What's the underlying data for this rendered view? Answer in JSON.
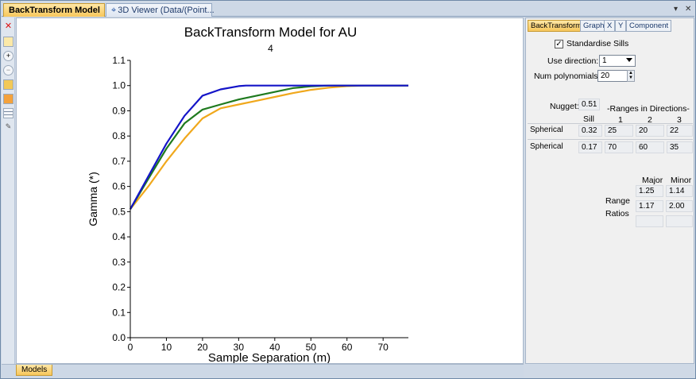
{
  "tabs": {
    "active_label": "BackTransform Model",
    "inactive_label": "3D Viewer (Data/(Point..."
  },
  "tab_controls": {
    "pin": "▾",
    "close": "✕"
  },
  "toolbar_icons": [
    "close-icon",
    "open-icon",
    "zoom-in-icon",
    "zoom-out-icon",
    "folder-icon",
    "chart-icon",
    "grid-icon",
    "wand-icon"
  ],
  "chart": {
    "title": "BackTransform Model for AU",
    "subtitle": "4",
    "xlabel": "Sample Separation (m)",
    "ylabel": "Gamma (*)"
  },
  "chart_data": {
    "type": "line",
    "title": "BackTransform Model for AU",
    "subtitle": "4",
    "xlabel": "Sample Separation (m)",
    "ylabel": "Gamma (*)",
    "xlim": [
      0,
      77
    ],
    "ylim": [
      0.0,
      1.1
    ],
    "xticks": [
      0,
      10,
      20,
      30,
      40,
      50,
      60,
      70
    ],
    "yticks": [
      0.0,
      0.1,
      0.2,
      0.3,
      0.4,
      0.5,
      0.6,
      0.7,
      0.8,
      0.9,
      1.0,
      1.1
    ],
    "grid": false,
    "series": [
      {
        "color": "#1414c8",
        "x": [
          0,
          5,
          10,
          15,
          20,
          25,
          30,
          32,
          77
        ],
        "y": [
          0.51,
          0.64,
          0.77,
          0.88,
          0.96,
          0.985,
          0.998,
          1.0,
          1.0
        ]
      },
      {
        "color": "#1f7a1f",
        "x": [
          0,
          5,
          10,
          15,
          20,
          25,
          30,
          35,
          40,
          45,
          50,
          55,
          77
        ],
        "y": [
          0.51,
          0.63,
          0.75,
          0.85,
          0.905,
          0.925,
          0.945,
          0.96,
          0.975,
          0.99,
          0.997,
          1.0,
          1.0
        ]
      },
      {
        "color": "#f0a81c",
        "x": [
          0,
          5,
          10,
          15,
          20,
          25,
          30,
          35,
          40,
          45,
          50,
          55,
          60,
          65,
          77
        ],
        "y": [
          0.51,
          0.6,
          0.7,
          0.79,
          0.87,
          0.91,
          0.925,
          0.94,
          0.955,
          0.97,
          0.983,
          0.992,
          0.998,
          1.0,
          1.0
        ]
      }
    ]
  },
  "bottom_tab": {
    "label": "Models"
  },
  "panel": {
    "tabs": [
      "BackTransform",
      "Graph",
      "X",
      "Y",
      "Component"
    ],
    "standardise_label": "Standardise Sills",
    "standardise_checked": "✓",
    "use_direction_label": "Use direction:",
    "use_direction_value": "1",
    "num_polynomials_label": "Num polynomials:",
    "num_polynomials_value": "20",
    "nugget_label": "Nugget:",
    "nugget_value": "0.51",
    "sill_header": "Sill",
    "ranges_header": "-Ranges in Directions-",
    "dir_headers": [
      "1",
      "2",
      "3"
    ],
    "structures": [
      {
        "type": "Spherical",
        "sill": "0.32",
        "r1": "25",
        "r2": "20",
        "r3": "22"
      },
      {
        "type": "Spherical",
        "sill": "0.17",
        "r1": "70",
        "r2": "60",
        "r3": "35"
      }
    ],
    "ratios_major_header": "Major",
    "ratios_minor_header": "Minor",
    "range_label": "Range",
    "ratios_label": "Ratios",
    "ratios": [
      {
        "major": "1.25",
        "minor": "1.14"
      },
      {
        "major": "1.17",
        "minor": "2.00"
      }
    ]
  }
}
